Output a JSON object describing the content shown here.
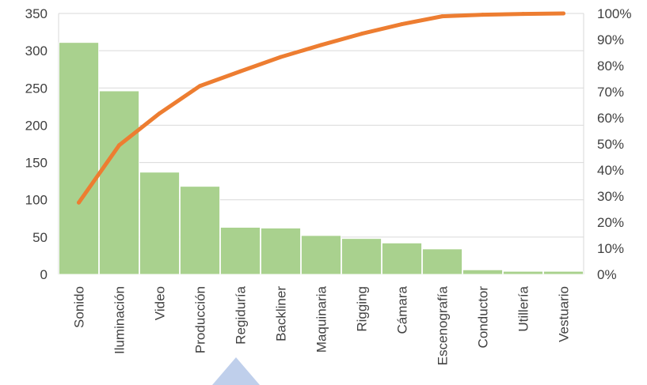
{
  "chart_data": {
    "type": "pareto",
    "categories": [
      "Sonido",
      "Iluminación",
      "Video",
      "Producción",
      "Regiduría",
      "Backliner",
      "Maquinaria",
      "Rigging",
      "Cámara",
      "Escenografía",
      "Conductor",
      "Utillería",
      "Vestuario"
    ],
    "series": [
      {
        "type": "bar",
        "values": [
          311,
          246,
          137,
          118,
          63,
          62,
          52,
          48,
          42,
          34,
          6,
          4,
          4
        ]
      },
      {
        "type": "line",
        "axis": "right",
        "values": [
          27.5,
          49.5,
          61.7,
          72.2,
          77.8,
          83.3,
          87.9,
          92.2,
          95.9,
          98.9,
          99.5,
          99.8,
          100.0
        ]
      }
    ],
    "y_left": {
      "min": 0,
      "max": 350,
      "ticks": [
        "0",
        "50",
        "100",
        "150",
        "200",
        "250",
        "300",
        "350"
      ]
    },
    "y_right": {
      "min": 0,
      "max": 100,
      "ticks": [
        "0%",
        "10%",
        "20%",
        "30%",
        "40%",
        "50%",
        "60%",
        "70%",
        "80%",
        "90%",
        "100%"
      ]
    },
    "grid": true,
    "legend": "none",
    "colors": {
      "bar": "#a9d18e",
      "line": "#ed7d31",
      "grid": "#d9d9d9",
      "text": "#404040",
      "overlay": "#b4c7e7"
    }
  }
}
